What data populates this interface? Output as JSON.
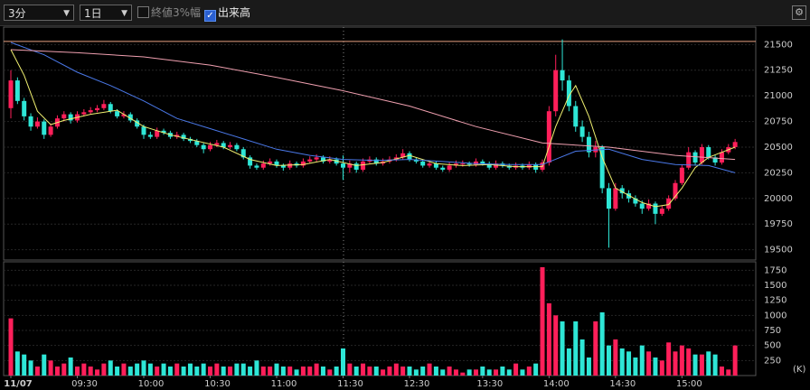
{
  "toolbar": {
    "interval": "3分",
    "range": "1日",
    "close_band": "終値3%幅",
    "close_band_checked": false,
    "volume": "出来高",
    "volume_checked": true
  },
  "chart_data": [
    {
      "type": "candlestick",
      "up_color": "#ff1f5a",
      "down_color": "#2ee6d6",
      "ylim": [
        19400,
        21670
      ],
      "yticks": [
        19500,
        19750,
        20000,
        20250,
        20500,
        20750,
        21000,
        21250,
        21500
      ],
      "grid": true,
      "hline": 21530,
      "hline_color": "#e8a080",
      "ohlc": [
        [
          20880,
          21250,
          20780,
          21150
        ],
        [
          21150,
          21180,
          20920,
          20950
        ],
        [
          20950,
          20980,
          20760,
          20800
        ],
        [
          20800,
          20830,
          20660,
          20700
        ],
        [
          20700,
          20790,
          20680,
          20750
        ],
        [
          20750,
          20770,
          20580,
          20620
        ],
        [
          20620,
          20730,
          20600,
          20700
        ],
        [
          20700,
          20810,
          20680,
          20780
        ],
        [
          20780,
          20850,
          20750,
          20820
        ],
        [
          20820,
          20840,
          20730,
          20760
        ],
        [
          20760,
          20850,
          20740,
          20820
        ],
        [
          20820,
          20870,
          20800,
          20840
        ],
        [
          20840,
          20890,
          20820,
          20860
        ],
        [
          20860,
          20910,
          20840,
          20880
        ],
        [
          20880,
          20960,
          20860,
          20920
        ],
        [
          20920,
          20940,
          20830,
          20850
        ],
        [
          20850,
          20870,
          20780,
          20800
        ],
        [
          20800,
          20850,
          20780,
          20820
        ],
        [
          20820,
          20840,
          20740,
          20760
        ],
        [
          20760,
          20780,
          20680,
          20700
        ],
        [
          20700,
          20720,
          20580,
          20620
        ],
        [
          20620,
          20650,
          20580,
          20600
        ],
        [
          20600,
          20690,
          20580,
          20660
        ],
        [
          20660,
          20680,
          20620,
          20640
        ],
        [
          20640,
          20660,
          20580,
          20600
        ],
        [
          20600,
          20650,
          20580,
          20620
        ],
        [
          20620,
          20640,
          20560,
          20580
        ],
        [
          20580,
          20600,
          20540,
          20560
        ],
        [
          20560,
          20580,
          20500,
          20520
        ],
        [
          20520,
          20540,
          20440,
          20480
        ],
        [
          20480,
          20550,
          20460,
          20520
        ],
        [
          20520,
          20570,
          20500,
          20540
        ],
        [
          20540,
          20560,
          20480,
          20500
        ],
        [
          20500,
          20550,
          20480,
          20520
        ],
        [
          20520,
          20540,
          20460,
          20480
        ],
        [
          20480,
          20500,
          20380,
          20400
        ],
        [
          20400,
          20420,
          20290,
          20320
        ],
        [
          20320,
          20340,
          20280,
          20300
        ],
        [
          20300,
          20370,
          20280,
          20340
        ],
        [
          20340,
          20390,
          20320,
          20360
        ],
        [
          20360,
          20380,
          20300,
          20320
        ],
        [
          20320,
          20340,
          20270,
          20300
        ],
        [
          20300,
          20370,
          20280,
          20340
        ],
        [
          20340,
          20360,
          20300,
          20320
        ],
        [
          20320,
          20390,
          20300,
          20360
        ],
        [
          20360,
          20410,
          20340,
          20380
        ],
        [
          20380,
          20430,
          20360,
          20400
        ],
        [
          20400,
          20420,
          20340,
          20360
        ],
        [
          20360,
          20410,
          20340,
          20380
        ],
        [
          20380,
          20400,
          20320,
          20340
        ],
        [
          20340,
          20420,
          20180,
          20300
        ],
        [
          20300,
          20370,
          20250,
          20340
        ],
        [
          20340,
          20360,
          20250,
          20280
        ],
        [
          20280,
          20390,
          20260,
          20360
        ],
        [
          20360,
          20410,
          20340,
          20380
        ],
        [
          20380,
          20400,
          20320,
          20340
        ],
        [
          20340,
          20390,
          20320,
          20360
        ],
        [
          20360,
          20410,
          20340,
          20380
        ],
        [
          20380,
          20430,
          20360,
          20400
        ],
        [
          20400,
          20480,
          20380,
          20440
        ],
        [
          20440,
          20460,
          20360,
          20380
        ],
        [
          20380,
          20400,
          20340,
          20360
        ],
        [
          20360,
          20380,
          20300,
          20320
        ],
        [
          20320,
          20370,
          20300,
          20340
        ],
        [
          20340,
          20360,
          20280,
          20300
        ],
        [
          20300,
          20320,
          20260,
          20280
        ],
        [
          20280,
          20350,
          20260,
          20320
        ],
        [
          20320,
          20370,
          20300,
          20340
        ],
        [
          20340,
          20370,
          20310,
          20340
        ],
        [
          20340,
          20360,
          20310,
          20330
        ],
        [
          20330,
          20390,
          20310,
          20360
        ],
        [
          20360,
          20380,
          20320,
          20340
        ],
        [
          20340,
          20360,
          20280,
          20300
        ],
        [
          20300,
          20370,
          20280,
          20340
        ],
        [
          20340,
          20360,
          20300,
          20320
        ],
        [
          20320,
          20340,
          20280,
          20300
        ],
        [
          20300,
          20350,
          20280,
          20320
        ],
        [
          20320,
          20340,
          20280,
          20300
        ],
        [
          20300,
          20360,
          20280,
          20330
        ],
        [
          20330,
          20350,
          20250,
          20280
        ],
        [
          20280,
          20380,
          20260,
          20350
        ],
        [
          20350,
          20900,
          20320,
          20850
        ],
        [
          20850,
          21400,
          20800,
          21250
        ],
        [
          21250,
          21550,
          21050,
          21150
        ],
        [
          21150,
          21200,
          20850,
          20900
        ],
        [
          20900,
          20950,
          20650,
          20700
        ],
        [
          20700,
          20760,
          20550,
          20600
        ],
        [
          20600,
          20650,
          20400,
          20450
        ],
        [
          20450,
          20560,
          20400,
          20500
        ],
        [
          20500,
          20520,
          20050,
          20100
        ],
        [
          20100,
          20150,
          19520,
          19900
        ],
        [
          19900,
          20150,
          19880,
          20100
        ],
        [
          20100,
          20130,
          20000,
          20050
        ],
        [
          20050,
          20080,
          19960,
          20000
        ],
        [
          20000,
          20030,
          19920,
          19950
        ],
        [
          19950,
          19980,
          19850,
          19900
        ],
        [
          19900,
          19990,
          19880,
          19950
        ],
        [
          19950,
          19970,
          19750,
          19850
        ],
        [
          19850,
          19930,
          19830,
          19900
        ],
        [
          19900,
          20030,
          19880,
          20000
        ],
        [
          20000,
          20180,
          19980,
          20150
        ],
        [
          20150,
          20330,
          20130,
          20300
        ],
        [
          20300,
          20500,
          20280,
          20450
        ],
        [
          20450,
          20470,
          20320,
          20350
        ],
        [
          20350,
          20530,
          20330,
          20500
        ],
        [
          20500,
          20520,
          20380,
          20400
        ],
        [
          20400,
          20420,
          20320,
          20350
        ],
        [
          20350,
          20480,
          20330,
          20450
        ],
        [
          20450,
          20530,
          20430,
          20500
        ],
        [
          20500,
          20580,
          20480,
          20550
        ]
      ],
      "lines": [
        {
          "color": "#f0f070",
          "x": [
            0,
            2,
            4,
            6,
            8,
            12,
            16,
            20,
            24,
            28,
            32,
            36,
            40,
            44,
            48,
            52,
            56,
            60,
            64,
            68,
            72,
            76,
            80,
            82,
            84,
            85,
            87,
            89,
            91,
            93,
            95,
            97,
            99,
            101,
            103,
            105,
            107,
            109
          ],
          "values": [
            21450,
            21200,
            20850,
            20720,
            20760,
            20820,
            20860,
            20700,
            20620,
            20560,
            20500,
            20380,
            20320,
            20330,
            20380,
            20320,
            20350,
            20420,
            20340,
            20320,
            20330,
            20310,
            20310,
            20700,
            21000,
            21100,
            20800,
            20400,
            20100,
            20030,
            19960,
            19920,
            19940,
            20100,
            20300,
            20400,
            20450,
            20500
          ]
        },
        {
          "color": "#4a78e8",
          "x": [
            0,
            5,
            10,
            15,
            20,
            25,
            30,
            35,
            40,
            45,
            50,
            55,
            60,
            65,
            70,
            75,
            80,
            85,
            90,
            95,
            100,
            105,
            109
          ],
          "values": [
            21520,
            21400,
            21230,
            21100,
            20950,
            20780,
            20680,
            20580,
            20480,
            20420,
            20380,
            20370,
            20380,
            20360,
            20340,
            20330,
            20330,
            20460,
            20480,
            20380,
            20330,
            20320,
            20250
          ]
        },
        {
          "color": "#f0a0b0",
          "x": [
            0,
            10,
            20,
            30,
            40,
            50,
            60,
            70,
            80,
            90,
            100,
            109
          ],
          "values": [
            21450,
            21420,
            21380,
            21300,
            21180,
            21050,
            20900,
            20700,
            20540,
            20500,
            20420,
            20380
          ]
        }
      ]
    },
    {
      "type": "bar",
      "ylim": [
        0,
        1890
      ],
      "yticks": [
        250,
        500,
        750,
        1000,
        1250,
        1500,
        1750
      ],
      "unit": "(K)",
      "grid": true,
      "values": [
        950,
        400,
        350,
        250,
        150,
        350,
        250,
        150,
        200,
        300,
        150,
        200,
        150,
        100,
        200,
        250,
        150,
        200,
        150,
        200,
        250,
        200,
        150,
        200,
        150,
        200,
        150,
        200,
        150,
        200,
        150,
        200,
        150,
        150,
        200,
        200,
        150,
        250,
        150,
        150,
        200,
        150,
        150,
        100,
        150,
        150,
        200,
        150,
        100,
        150,
        450,
        200,
        150,
        200,
        150,
        150,
        100,
        150,
        200,
        150,
        150,
        100,
        150,
        200,
        150,
        100,
        150,
        100,
        50,
        100,
        100,
        150,
        100,
        100,
        150,
        100,
        200,
        100,
        150,
        200,
        1800,
        1200,
        1000,
        900,
        450,
        900,
        600,
        300,
        900,
        1050,
        500,
        600,
        450,
        400,
        300,
        500,
        400,
        300,
        250,
        550,
        400,
        500,
        450,
        350,
        350,
        400,
        350,
        150,
        100,
        500
      ],
      "xticks": [
        {
          "value": 0,
          "label": "11/07"
        },
        {
          "value": 10,
          "label": "09:30"
        },
        {
          "value": 20,
          "label": "10:00"
        },
        {
          "value": 30,
          "label": "10:30"
        },
        {
          "value": 40,
          "label": "11:00"
        },
        {
          "value": 50,
          "label": "11:30"
        },
        {
          "value": 60,
          "label": "12:30"
        },
        {
          "value": 71,
          "label": "13:30"
        },
        {
          "value": 81,
          "label": "14:00"
        },
        {
          "value": 91,
          "label": "14:30"
        },
        {
          "value": 101,
          "label": "15:00"
        }
      ]
    }
  ]
}
